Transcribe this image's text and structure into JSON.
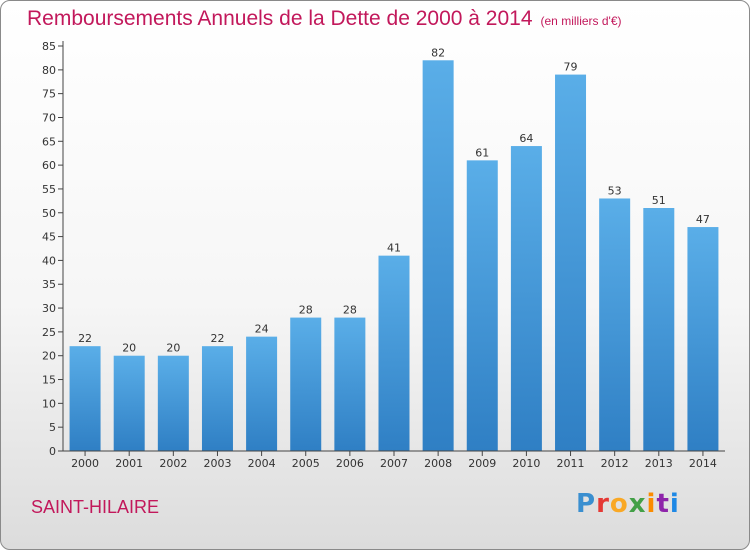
{
  "chart_data": {
    "type": "bar",
    "title": "Remboursements Annuels de la Dette de 2000 à 2014",
    "subtitle": "(en milliers d'€)",
    "categories": [
      "2000",
      "2001",
      "2002",
      "2003",
      "2004",
      "2005",
      "2006",
      "2007",
      "2008",
      "2009",
      "2010",
      "2011",
      "2012",
      "2013",
      "2014"
    ],
    "values": [
      22,
      20,
      20,
      22,
      24,
      28,
      28,
      41,
      82,
      61,
      64,
      79,
      53,
      51,
      47
    ],
    "ylim": [
      0,
      85
    ],
    "yticks": [
      0,
      5,
      10,
      15,
      20,
      25,
      30,
      35,
      40,
      45,
      50,
      55,
      60,
      65,
      70,
      75,
      80,
      85
    ],
    "grid": false,
    "bar_color": "#3d95d9",
    "accent_color": "#c2185b"
  },
  "footer": {
    "city": "SAINT-HILAIRE",
    "logo_letters": [
      "P",
      "r",
      "o",
      "x",
      "i",
      "t",
      "i"
    ]
  }
}
